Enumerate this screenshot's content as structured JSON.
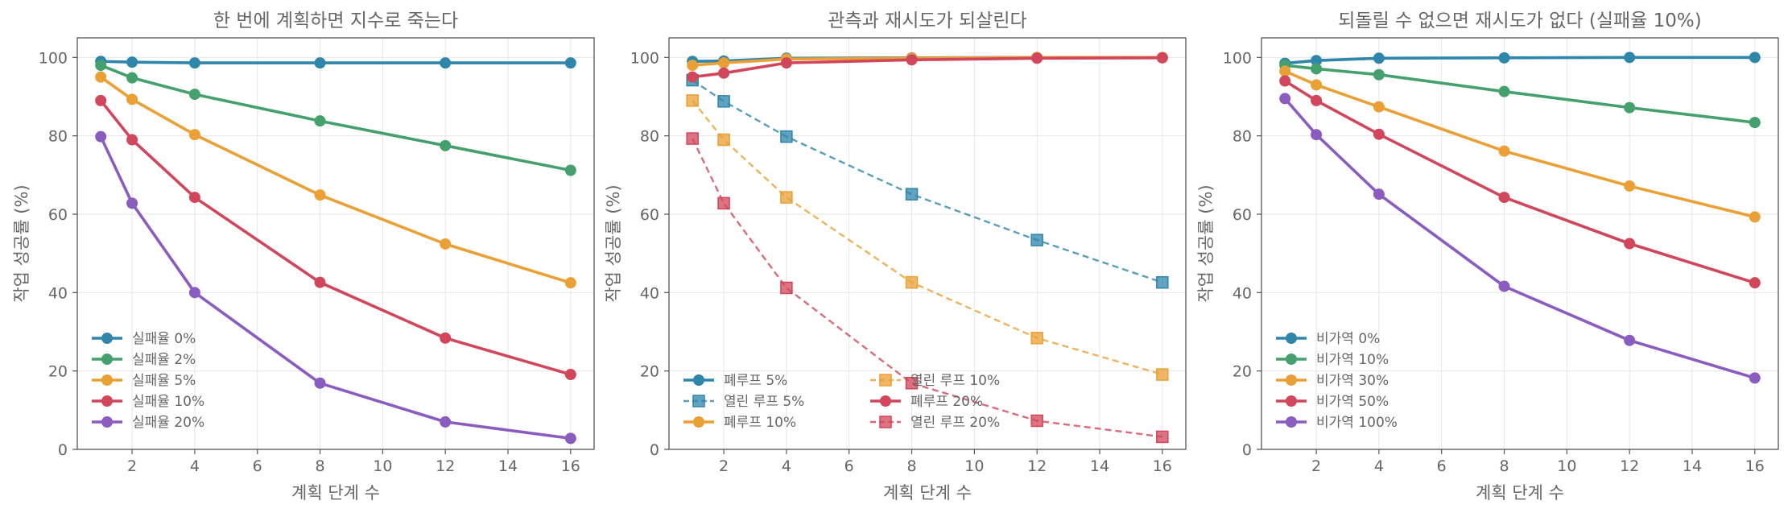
{
  "figure": {
    "colors": {
      "blue": "#2e86ab",
      "green": "#44a06c",
      "orange": "#eaa035",
      "red": "#d1465a",
      "purple": "#8a5cc0",
      "axis": "#555555",
      "text": "#666666",
      "grid": "#e6e6e6"
    }
  },
  "chart_data": [
    {
      "type": "line",
      "title": "한 번에 계획하면 지수로 죽는다",
      "xlabel": "계획 단계 수",
      "ylabel": "작업 성공률 (%)",
      "xlim": [
        0.25,
        16.75
      ],
      "ylim": [
        0,
        105
      ],
      "xticks": [
        2,
        4,
        6,
        8,
        10,
        12,
        14,
        16
      ],
      "yticks": [
        0,
        20,
        40,
        60,
        80,
        100
      ],
      "grid": true,
      "legend_position": "lower-left",
      "legend_columns": 1,
      "x": [
        1,
        2,
        4,
        8,
        12,
        16
      ],
      "series": [
        {
          "name": "실패율 0%",
          "color": "blue",
          "style": "solid",
          "marker": "circle",
          "values": [
            99,
            98.8,
            98.6,
            98.6,
            98.6,
            98.6
          ]
        },
        {
          "name": "실패율 2%",
          "color": "green",
          "style": "solid",
          "marker": "circle",
          "values": [
            98,
            94.8,
            90.6,
            83.8,
            77.5,
            71.2
          ]
        },
        {
          "name": "실패율 5%",
          "color": "orange",
          "style": "solid",
          "marker": "circle",
          "values": [
            95,
            89.3,
            80.3,
            64.9,
            52.4,
            42.5
          ]
        },
        {
          "name": "실패율 10%",
          "color": "red",
          "style": "solid",
          "marker": "circle",
          "values": [
            89,
            79,
            64.3,
            42.6,
            28.4,
            19.1
          ]
        },
        {
          "name": "실패율 20%",
          "color": "purple",
          "style": "solid",
          "marker": "circle",
          "values": [
            79.8,
            62.8,
            40,
            16.9,
            7,
            2.8
          ]
        }
      ]
    },
    {
      "type": "line",
      "title": "관측과 재시도가 되살린다",
      "xlabel": "계획 단계 수",
      "ylabel": "작업 성공률 (%)",
      "xlim": [
        0.25,
        16.75
      ],
      "ylim": [
        0,
        105
      ],
      "xticks": [
        2,
        4,
        6,
        8,
        10,
        12,
        14,
        16
      ],
      "yticks": [
        0,
        20,
        40,
        60,
        80,
        100
      ],
      "grid": true,
      "legend_position": "lower-left",
      "legend_columns": 2,
      "x": [
        1,
        2,
        4,
        8,
        12,
        16
      ],
      "series": [
        {
          "name": "폐루프 5%",
          "color": "blue",
          "style": "solid",
          "marker": "circle",
          "values": [
            99,
            99.1,
            99.8,
            99.9,
            100,
            100
          ]
        },
        {
          "name": "열린 루프 5%",
          "color": "blue",
          "style": "dashed",
          "marker": "square",
          "values": [
            94.2,
            88.8,
            79.8,
            65.1,
            53.4,
            42.6
          ]
        },
        {
          "name": "폐루프 10%",
          "color": "orange",
          "style": "solid",
          "marker": "circle",
          "values": [
            98,
            98.6,
            99.6,
            99.8,
            100,
            100
          ]
        },
        {
          "name": "열린 루프 10%",
          "color": "orange",
          "style": "dashed",
          "marker": "square",
          "values": [
            89,
            79,
            64.3,
            42.6,
            28.4,
            19.1
          ]
        },
        {
          "name": "폐루프 20%",
          "color": "red",
          "style": "solid",
          "marker": "circle",
          "values": [
            95,
            96,
            98.6,
            99.4,
            99.8,
            99.9
          ]
        },
        {
          "name": "열린 루프 20%",
          "color": "red",
          "style": "dashed",
          "marker": "square",
          "values": [
            79.3,
            62.8,
            41.2,
            16.9,
            7.3,
            3.2
          ]
        }
      ]
    },
    {
      "type": "line",
      "title": "되돌릴 수 없으면 재시도가 없다 (실패율 10%)",
      "xlabel": "계획 단계 수",
      "ylabel": "작업 성공률 (%)",
      "xlim": [
        0.25,
        16.75
      ],
      "ylim": [
        0,
        105
      ],
      "xticks": [
        2,
        4,
        6,
        8,
        10,
        12,
        14,
        16
      ],
      "yticks": [
        0,
        20,
        40,
        60,
        80,
        100
      ],
      "grid": true,
      "legend_position": "lower-left",
      "legend_columns": 1,
      "x": [
        1,
        2,
        4,
        8,
        12,
        16
      ],
      "series": [
        {
          "name": "비가역 0%",
          "color": "blue",
          "style": "solid",
          "marker": "circle",
          "values": [
            98.5,
            99.2,
            99.8,
            99.9,
            100,
            100
          ]
        },
        {
          "name": "비가역 10%",
          "color": "green",
          "style": "solid",
          "marker": "circle",
          "values": [
            98,
            97.1,
            95.6,
            91.3,
            87.2,
            83.4
          ]
        },
        {
          "name": "비가역 30%",
          "color": "orange",
          "style": "solid",
          "marker": "circle",
          "values": [
            96.5,
            93,
            87.4,
            76.1,
            67.2,
            59.3
          ]
        },
        {
          "name": "비가역 50%",
          "color": "red",
          "style": "solid",
          "marker": "circle",
          "values": [
            94,
            89,
            80.4,
            64.3,
            52.5,
            42.5
          ]
        },
        {
          "name": "비가역 100%",
          "color": "purple",
          "style": "solid",
          "marker": "circle",
          "values": [
            89.5,
            80.3,
            65.1,
            41.6,
            27.8,
            18.2
          ]
        }
      ]
    }
  ]
}
